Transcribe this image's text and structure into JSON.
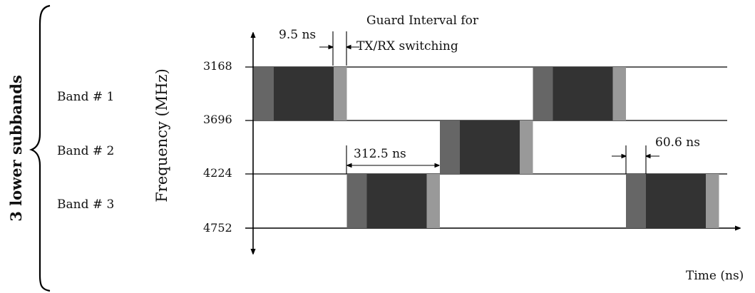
{
  "group_label": "3 lower subbands",
  "y_axis_label": "Frequency (MHz)",
  "x_axis_label": "Time (ns)",
  "frequencies": [
    "3168",
    "3696",
    "4224",
    "4752"
  ],
  "bands": [
    "Band # 1",
    "Band # 2",
    "Band # 3"
  ],
  "annotations": {
    "guard_line1": "Guard Interval for",
    "guard_line2": "TX/RX switching",
    "guard_time": "9.5 ns",
    "symbol_period": "312.5 ns",
    "zero_padding": "60.6 ns"
  },
  "pulses": [
    {
      "band": "Band # 1",
      "slot": 1
    },
    {
      "band": "Band # 3",
      "slot": 2
    },
    {
      "band": "Band # 2",
      "slot": 3
    },
    {
      "band": "Band # 1",
      "slot": 4
    },
    {
      "band": "Band # 3",
      "slot": 5
    }
  ],
  "colors": {
    "prefix": "#666666",
    "symbol": "#333333",
    "guard": "#999999",
    "line": "#000000"
  }
}
